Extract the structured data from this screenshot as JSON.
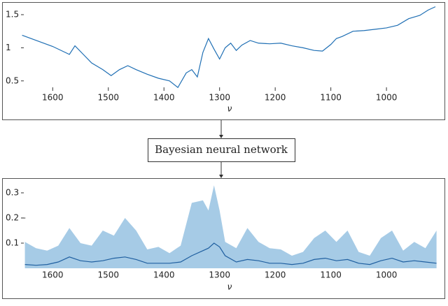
{
  "chart_data": [
    {
      "type": "line",
      "xlabel": "ν",
      "color": "#1f6fb4",
      "x": [
        1655,
        1600,
        1570,
        1560,
        1545,
        1530,
        1510,
        1495,
        1480,
        1465,
        1450,
        1430,
        1410,
        1390,
        1375,
        1360,
        1350,
        1340,
        1330,
        1320,
        1310,
        1300,
        1290,
        1280,
        1270,
        1260,
        1245,
        1230,
        1210,
        1190,
        1170,
        1150,
        1130,
        1115,
        1100,
        1090,
        1080,
        1060,
        1040,
        1020,
        1000,
        980,
        960,
        940,
        925,
        912
      ],
      "values": [
        1.19,
        1.02,
        0.9,
        1.03,
        0.9,
        0.77,
        0.67,
        0.58,
        0.67,
        0.73,
        0.67,
        0.6,
        0.54,
        0.5,
        0.4,
        0.62,
        0.67,
        0.56,
        0.93,
        1.14,
        0.98,
        0.83,
        1.0,
        1.07,
        0.96,
        1.04,
        1.11,
        1.07,
        1.06,
        1.07,
        1.03,
        1.0,
        0.96,
        0.95,
        1.05,
        1.14,
        1.17,
        1.25,
        1.26,
        1.28,
        1.3,
        1.34,
        1.44,
        1.49,
        1.57,
        1.62
      ],
      "xlim": [
        1657,
        907
      ],
      "ylim": [
        0.35,
        1.69
      ],
      "xticks": [
        1600,
        1500,
        1400,
        1300,
        1200,
        1100,
        1000
      ],
      "yticks": [
        0.5,
        1,
        1.5
      ]
    },
    {
      "type": "area",
      "xlabel": "ν",
      "x": [
        1650,
        1630,
        1610,
        1590,
        1570,
        1550,
        1530,
        1510,
        1490,
        1470,
        1450,
        1430,
        1410,
        1390,
        1370,
        1350,
        1330,
        1320,
        1310,
        1300,
        1290,
        1270,
        1250,
        1230,
        1210,
        1190,
        1170,
        1150,
        1130,
        1110,
        1090,
        1070,
        1050,
        1030,
        1010,
        990,
        970,
        950,
        930,
        910
      ],
      "series": [
        {
          "color": "#a6cbe6",
          "values": [
            0.105,
            0.08,
            0.07,
            0.09,
            0.16,
            0.1,
            0.09,
            0.15,
            0.13,
            0.2,
            0.15,
            0.075,
            0.085,
            0.06,
            0.09,
            0.26,
            0.27,
            0.23,
            0.33,
            0.23,
            0.105,
            0.08,
            0.16,
            0.105,
            0.08,
            0.075,
            0.05,
            0.065,
            0.12,
            0.15,
            0.105,
            0.15,
            0.065,
            0.05,
            0.12,
            0.15,
            0.07,
            0.105,
            0.08,
            0.15
          ]
        },
        {
          "color": "#1f5fa0",
          "values": [
            0.015,
            0.012,
            0.015,
            0.025,
            0.045,
            0.03,
            0.025,
            0.03,
            0.04,
            0.045,
            0.035,
            0.02,
            0.02,
            0.02,
            0.025,
            0.05,
            0.07,
            0.08,
            0.1,
            0.085,
            0.05,
            0.025,
            0.035,
            0.03,
            0.02,
            0.02,
            0.015,
            0.02,
            0.035,
            0.04,
            0.03,
            0.035,
            0.02,
            0.015,
            0.03,
            0.04,
            0.025,
            0.03,
            0.025,
            0.02
          ]
        }
      ],
      "xlim": [
        1657,
        907
      ],
      "ylim": [
        0,
        0.35
      ],
      "xticks": [
        1600,
        1500,
        1400,
        1300,
        1200,
        1100,
        1000
      ],
      "yticks": [
        0.1,
        {
          "value": 0.2,
          "label": "0.2 –"
        },
        0.3
      ]
    }
  ],
  "flow_label": "Bayesian neural network"
}
